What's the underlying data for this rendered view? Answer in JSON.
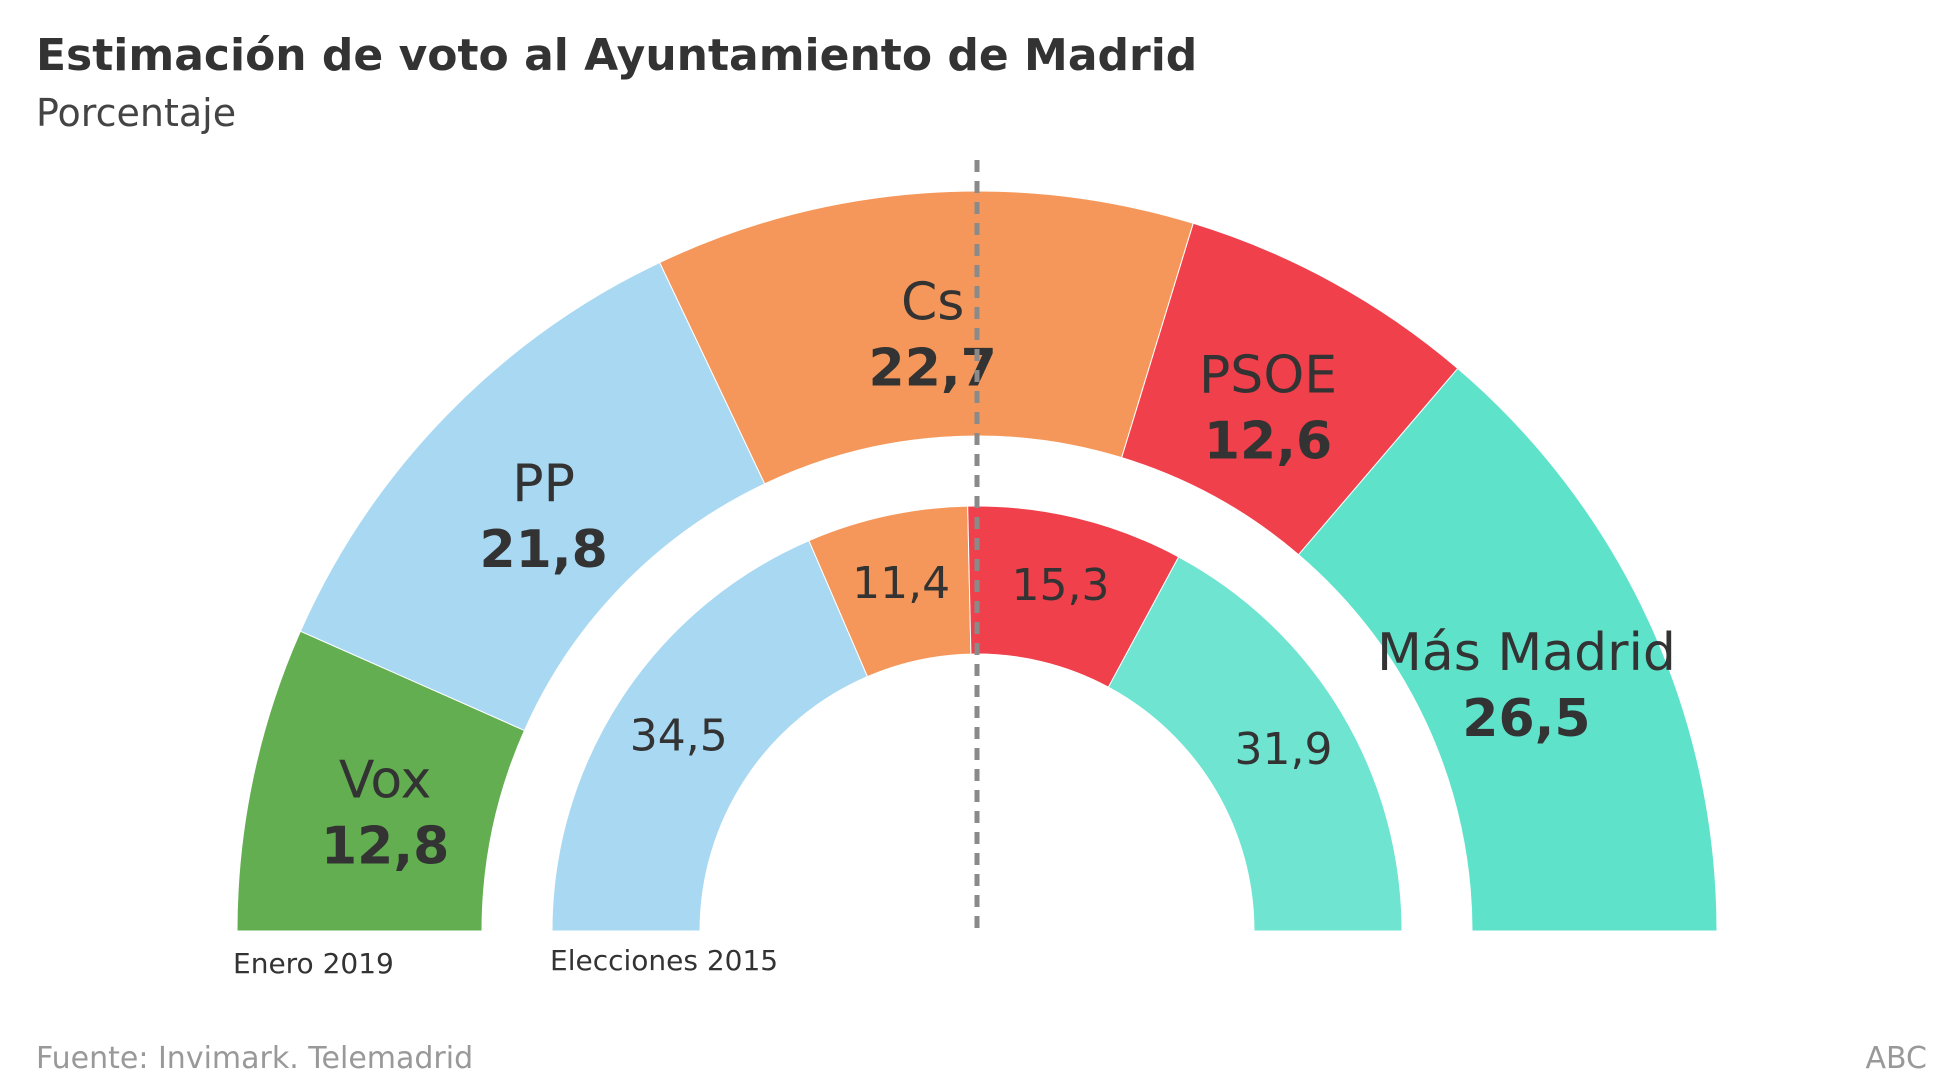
{
  "chart_data": {
    "type": "pie",
    "variant": "nested-semicircle",
    "title": "Estimación de voto al Ayuntamiento de Madrid",
    "subtitle": "Porcentaje",
    "rings": [
      {
        "label": "Enero 2019",
        "segments": [
          {
            "name": "Vox",
            "value": 12.8,
            "display": "12,8",
            "color": "#63ae50"
          },
          {
            "name": "PP",
            "value": 21.8,
            "display": "21,8",
            "color": "#a8d8f2"
          },
          {
            "name": "Cs",
            "value": 22.7,
            "display": "22,7",
            "color": "#f5975a"
          },
          {
            "name": "PSOE",
            "value": 12.6,
            "display": "12,6",
            "color": "#ef404b"
          },
          {
            "name": "Más Madrid",
            "value": 26.5,
            "display": "26,5",
            "color": "#5fe2ca"
          }
        ]
      },
      {
        "label": "Elecciones 2015",
        "segments": [
          {
            "name": "PP",
            "value": 34.5,
            "display": "34,5",
            "color": "#a8d8f2"
          },
          {
            "name": "Cs",
            "value": 11.4,
            "display": "11,4",
            "color": "#f5975a"
          },
          {
            "name": "PSOE",
            "value": 15.3,
            "display": "15,3",
            "color": "#ef404b"
          },
          {
            "name": "Más Madrid",
            "value": 31.9,
            "display": "31,9",
            "color": "#6fe4d1"
          }
        ]
      }
    ],
    "reference_line": "50%",
    "source": "Fuente: Invimark. Telemadrid",
    "credit": "ABC"
  }
}
